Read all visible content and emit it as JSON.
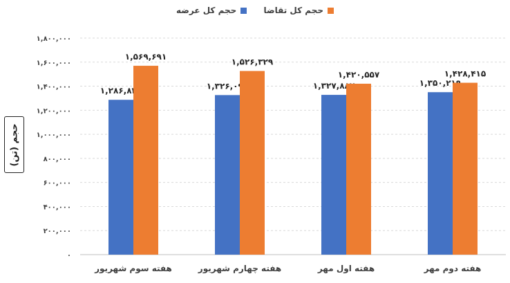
{
  "chart_data": {
    "type": "bar",
    "categories": [
      "هفته سوم شهریور",
      "هفته چهارم شهریور",
      "هفته اول مهر",
      "هفته دوم مهر"
    ],
    "series": [
      {
        "name": "حجم کل عرضه",
        "color": "#4472C4",
        "values": [
          1286831,
          1326093,
          1327882,
          1350219
        ],
        "labels": [
          "۱,۲۸۶,۸۳۱",
          "۱,۳۲۶,۰۹۳",
          "۱,۳۲۷,۸۸۲",
          "۱,۳۵۰,۲۱۹"
        ]
      },
      {
        "name": "حجم کل تقاضا",
        "color": "#ED7D31",
        "values": [
          1569691,
          1526329,
          1420557,
          1428415
        ],
        "labels": [
          "۱,۵۶۹,۶۹۱",
          "۱,۵۲۶,۳۲۹",
          "۱,۴۲۰,۵۵۷",
          "۱,۴۲۸,۴۱۵"
        ]
      }
    ],
    "ylabel": "حجم (تن)",
    "ylim": [
      0,
      1800000
    ],
    "yticks": [
      0,
      200000,
      400000,
      600000,
      800000,
      1000000,
      1200000,
      1400000,
      1600000,
      1800000
    ],
    "ytick_labels": [
      "۰",
      "۲۰۰,۰۰۰",
      "۴۰۰,۰۰۰",
      "۶۰۰,۰۰۰",
      "۸۰۰,۰۰۰",
      "۱,۰۰۰,۰۰۰",
      "۱,۲۰۰,۰۰۰",
      "۱,۴۰۰,۰۰۰",
      "۱,۶۰۰,۰۰۰",
      "۱,۸۰۰,۰۰۰"
    ],
    "grid": true,
    "gridline_style": "dashed",
    "legend_position": "top-center"
  }
}
